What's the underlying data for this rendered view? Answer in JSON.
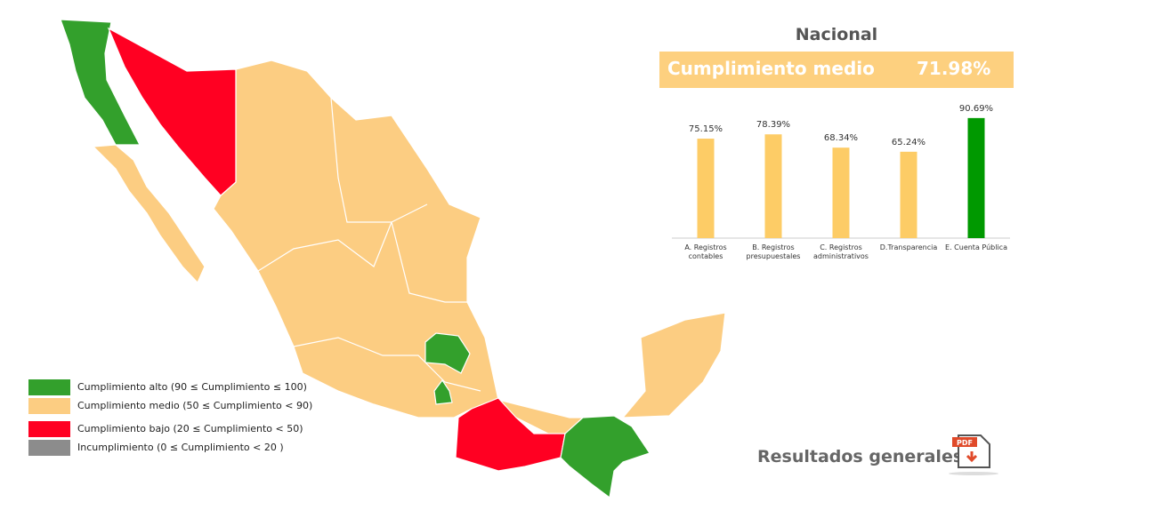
{
  "nacional": {
    "title": "Nacional",
    "label": "Cumplimiento medio",
    "value": "71.98%"
  },
  "chart_data": {
    "type": "bar",
    "categories": [
      "A. Registros contables",
      "B. Registros presupuestales",
      "C. Registros administrativos",
      "D.Transparencia",
      "E. Cuenta Pública"
    ],
    "values": [
      75.15,
      78.39,
      68.34,
      65.24,
      90.69
    ],
    "value_labels": [
      "75.15%",
      "78.39%",
      "68.34%",
      "65.24%",
      "90.69%"
    ],
    "colors": [
      "#fdcc66",
      "#fdcc66",
      "#fdcc66",
      "#fdcc66",
      "#009900"
    ]
  },
  "legend": [
    {
      "label": "Cumplimiento alto (90 ≤ Cumplimiento ≤ 100)",
      "color": "#33a02c"
    },
    {
      "label": "Cumplimiento medio (50 ≤ Cumplimiento  < 90)",
      "color": "#fccd82"
    },
    {
      "label": "Cumplimiento bajo (20 ≤ Cumplimiento < 50)",
      "color": "#ff0022"
    },
    {
      "label": "Incumplimiento (0 ≤ Cumplimiento < 20 )",
      "color": "#8c8c8c"
    }
  ],
  "resultados": {
    "label": "Resultados generales",
    "icon": "PDF"
  }
}
